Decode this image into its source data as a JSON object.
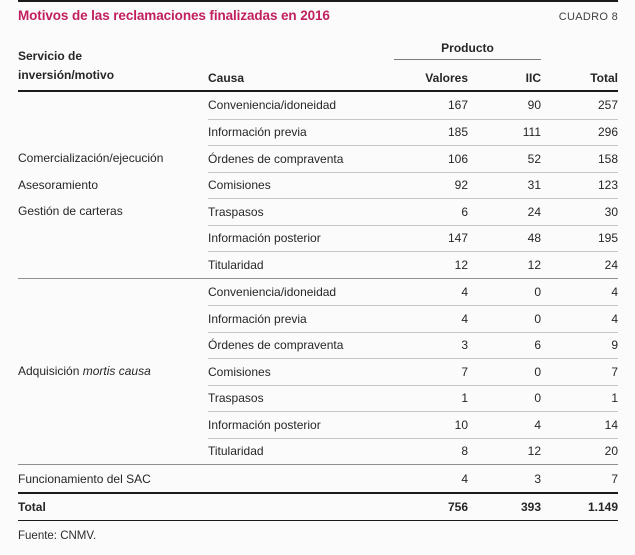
{
  "title": "Motivos de las reclamaciones finalizadas en 2016",
  "table_label": "CUADRO 8",
  "colors": {
    "accent": "#c21f5e"
  },
  "header": {
    "servicio_line1": "Servicio de",
    "servicio_line2": "inversión/motivo",
    "causa": "Causa",
    "producto": "Producto",
    "valores": "Valores",
    "iic": "IIC",
    "total": "Total"
  },
  "groups": [
    {
      "service_lines": [
        "Comercialización/ejecución",
        "Asesoramiento",
        "Gestión de carteras"
      ],
      "rows": [
        {
          "causa": "Conveniencia/idoneidad",
          "valores": "167",
          "iic": "90",
          "total": "257"
        },
        {
          "causa": "Información previa",
          "valores": "185",
          "iic": "111",
          "total": "296"
        },
        {
          "causa": "Órdenes de compraventa",
          "valores": "106",
          "iic": "52",
          "total": "158"
        },
        {
          "causa": "Comisiones",
          "valores": "92",
          "iic": "31",
          "total": "123"
        },
        {
          "causa": "Traspasos",
          "valores": "6",
          "iic": "24",
          "total": "30"
        },
        {
          "causa": "Información posterior",
          "valores": "147",
          "iic": "48",
          "total": "195"
        },
        {
          "causa": "Titularidad",
          "valores": "12",
          "iic": "12",
          "total": "24"
        }
      ]
    },
    {
      "service_prefix": "Adquisición",
      "service_italic": "mortis causa",
      "rows": [
        {
          "causa": "Conveniencia/idoneidad",
          "valores": "4",
          "iic": "0",
          "total": "4"
        },
        {
          "causa": "Información previa",
          "valores": "4",
          "iic": "0",
          "total": "4"
        },
        {
          "causa": "Órdenes de compraventa",
          "valores": "3",
          "iic": "6",
          "total": "9"
        },
        {
          "causa": "Comisiones",
          "valores": "7",
          "iic": "0",
          "total": "7"
        },
        {
          "causa": "Traspasos",
          "valores": "1",
          "iic": "0",
          "total": "1"
        },
        {
          "causa": "Información posterior",
          "valores": "10",
          "iic": "4",
          "total": "14"
        },
        {
          "causa": "Titularidad",
          "valores": "8",
          "iic": "12",
          "total": "20"
        }
      ]
    }
  ],
  "sac_row": {
    "label": "Funcionamiento del SAC",
    "valores": "4",
    "iic": "3",
    "total": "7"
  },
  "total_row": {
    "label": "Total",
    "valores": "756",
    "iic": "393",
    "total": "1.149"
  },
  "source": "Fuente: CNMV."
}
